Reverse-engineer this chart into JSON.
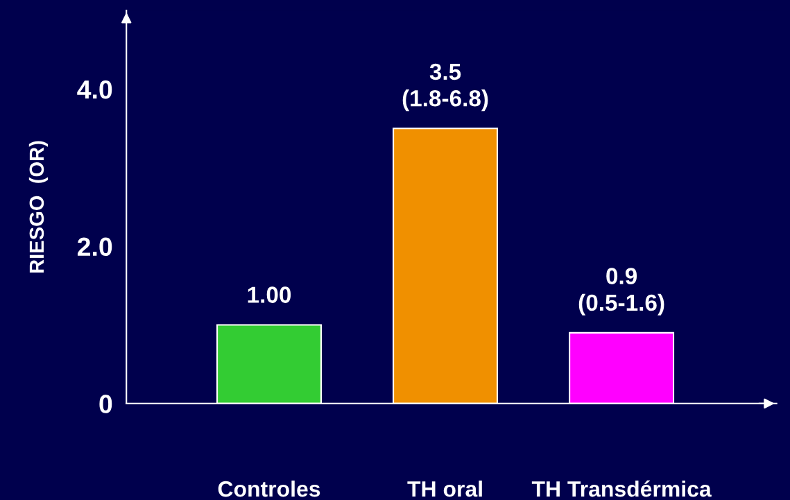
{
  "chart_data": {
    "type": "bar",
    "ylabel": "RIESGO  (OR)",
    "categories": [
      "Controles",
      "TH oral",
      "TH Transdérmica"
    ],
    "values": [
      1.0,
      3.5,
      0.9
    ],
    "colors": [
      "#33cc33",
      "#f09000",
      "#ff00ff"
    ],
    "value_labels": [
      "1.00",
      "3.5\n(1.8-6.8)",
      "0.9\n(0.5-1.6)"
    ],
    "ylim": [
      0,
      5
    ],
    "yticks": [
      0,
      {
        "value": 2,
        "label": "2.0"
      },
      {
        "value": 4,
        "label": "4.0"
      }
    ],
    "grid": false,
    "legend": false
  }
}
